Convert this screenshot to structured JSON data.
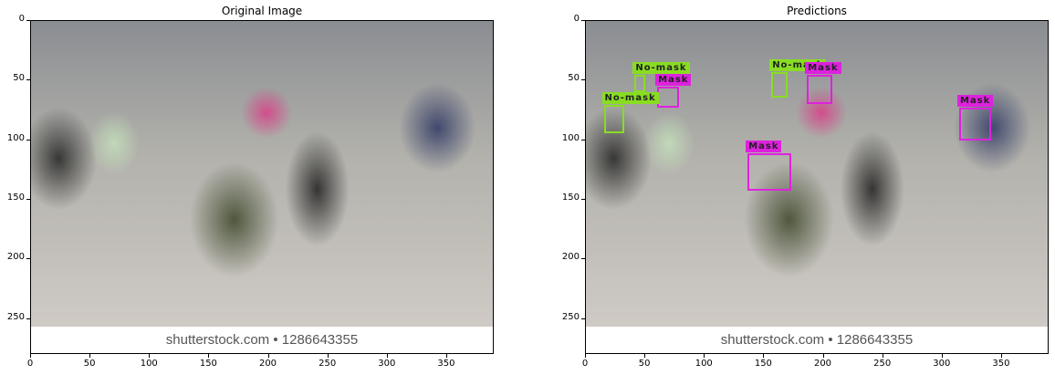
{
  "panels": [
    {
      "id": "original",
      "title": "Original Image",
      "watermark": "shutterstock.com • 1286643355",
      "detections": []
    },
    {
      "id": "predictions",
      "title": "Predictions",
      "watermark": "shutterstock.com • 1286643355",
      "detections": [
        {
          "label": "No-mask",
          "color": "#88dd22",
          "x1": 41,
          "y1": 45,
          "x2": 50,
          "y2": 60
        },
        {
          "label": "Mask",
          "color": "#dd22dd",
          "x1": 60,
          "y1": 55,
          "x2": 78,
          "y2": 73
        },
        {
          "label": "No-mask",
          "color": "#88dd22",
          "x1": 15,
          "y1": 70,
          "x2": 32,
          "y2": 94
        },
        {
          "label": "No-mask",
          "color": "#88dd22",
          "x1": 156,
          "y1": 43,
          "x2": 170,
          "y2": 64
        },
        {
          "label": "Mask",
          "color": "#dd22dd",
          "x1": 186,
          "y1": 45,
          "x2": 207,
          "y2": 70
        },
        {
          "label": "Mask",
          "color": "#dd22dd",
          "x1": 314,
          "y1": 73,
          "x2": 341,
          "y2": 100
        },
        {
          "label": "Mask",
          "color": "#dd22dd",
          "x1": 136,
          "y1": 111,
          "x2": 173,
          "y2": 142
        }
      ]
    }
  ],
  "axes": {
    "xlim": [
      0,
      390
    ],
    "ylim": [
      280,
      0
    ],
    "x_ticks": [
      0,
      50,
      100,
      150,
      200,
      250,
      300,
      350
    ],
    "y_ticks": [
      0,
      50,
      100,
      150,
      200,
      250
    ]
  }
}
